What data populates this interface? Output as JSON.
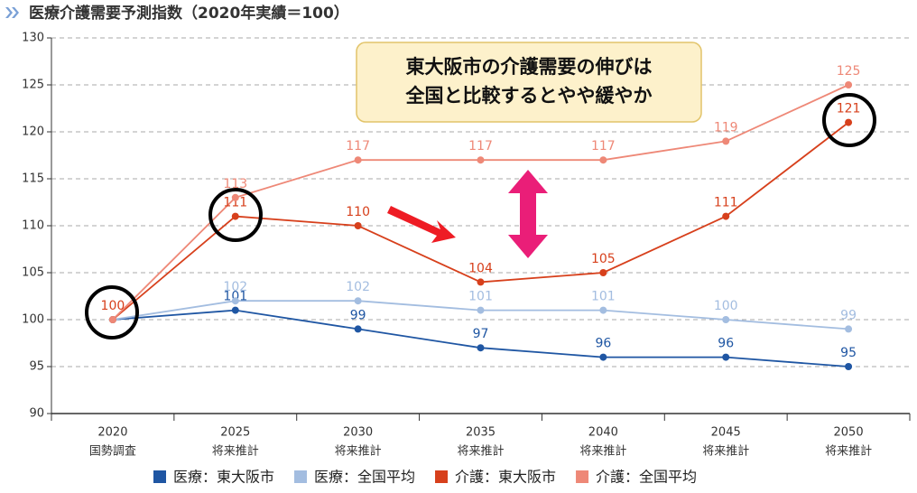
{
  "chart_data": {
    "type": "line",
    "title": "医療介護需要予測指数（2020年実績＝100）",
    "categories": [
      "2020",
      "2025",
      "2030",
      "2035",
      "2040",
      "2045",
      "2050"
    ],
    "category_sublabels": [
      "国勢調査",
      "将来推計",
      "将来推計",
      "将来推計",
      "将来推計",
      "将来推計",
      "将来推計"
    ],
    "series": [
      {
        "name": "医療：東大阪市",
        "color": "#1f56a3",
        "values": [
          100,
          101,
          99,
          97,
          96,
          96,
          95
        ]
      },
      {
        "name": "医療：全国平均",
        "color": "#a3bde0",
        "values": [
          100,
          102,
          102,
          101,
          101,
          100,
          99
        ]
      },
      {
        "name": "介護：東大阪市",
        "color": "#d7401c",
        "values": [
          100,
          111,
          110,
          104,
          105,
          111,
          121
        ]
      },
      {
        "name": "介護：全国平均",
        "color": "#ee8877",
        "values": [
          100,
          113,
          117,
          117,
          117,
          119,
          125
        ]
      }
    ],
    "ylim": [
      90,
      130
    ],
    "yticks": [
      90,
      95,
      100,
      105,
      110,
      115,
      120,
      125,
      130
    ],
    "grid": true,
    "annotation": [
      "東大阪市の介護需要の伸びは",
      "全国と比較するとやや緩やか"
    ]
  }
}
